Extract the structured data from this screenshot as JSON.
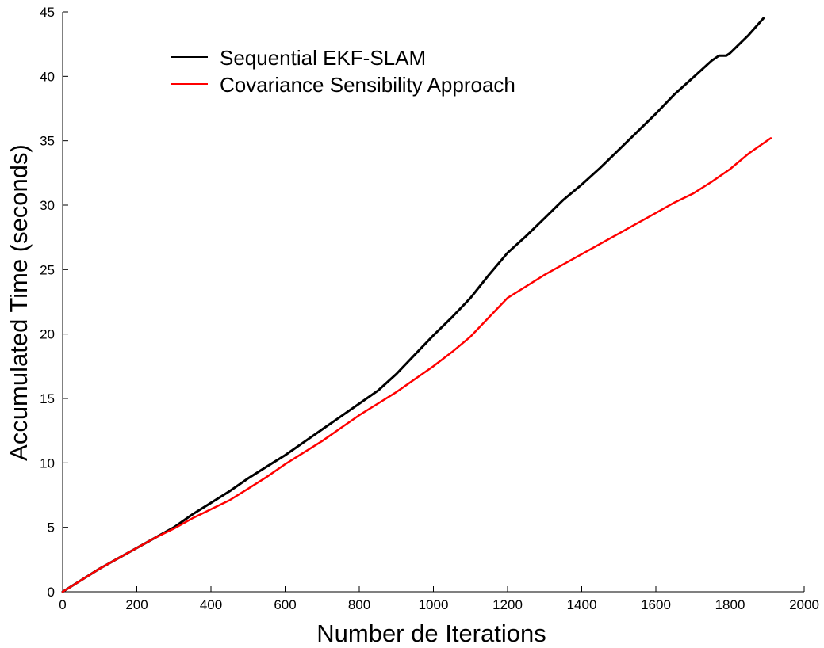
{
  "chart_data": {
    "type": "line",
    "title": "",
    "xlabel": "Number de Iterations",
    "ylabel": "Accumulated Time (seconds)",
    "xlim": [
      0,
      2000
    ],
    "ylim": [
      0,
      45
    ],
    "x_ticks": [
      "0",
      "200",
      "400",
      "600",
      "800",
      "1000",
      "1200",
      "1400",
      "1600",
      "1800",
      "2000"
    ],
    "y_ticks": [
      "0",
      "5",
      "10",
      "15",
      "20",
      "25",
      "30",
      "35",
      "40",
      "45"
    ],
    "grid": false,
    "legend_position": "top-left",
    "series": [
      {
        "name": "Sequential EKF-SLAM",
        "color": "#000000",
        "points": [
          [
            0,
            0
          ],
          [
            50,
            0.9
          ],
          [
            100,
            1.8
          ],
          [
            150,
            2.6
          ],
          [
            200,
            3.4
          ],
          [
            250,
            4.2
          ],
          [
            300,
            5.0
          ],
          [
            350,
            6.0
          ],
          [
            400,
            6.9
          ],
          [
            450,
            7.8
          ],
          [
            500,
            8.8
          ],
          [
            550,
            9.7
          ],
          [
            600,
            10.6
          ],
          [
            650,
            11.6
          ],
          [
            700,
            12.6
          ],
          [
            750,
            13.6
          ],
          [
            800,
            14.6
          ],
          [
            850,
            15.6
          ],
          [
            900,
            16.9
          ],
          [
            950,
            18.4
          ],
          [
            1000,
            19.9
          ],
          [
            1050,
            21.3
          ],
          [
            1100,
            22.8
          ],
          [
            1150,
            24.6
          ],
          [
            1200,
            26.3
          ],
          [
            1250,
            27.6
          ],
          [
            1300,
            29.0
          ],
          [
            1350,
            30.4
          ],
          [
            1400,
            31.6
          ],
          [
            1450,
            32.9
          ],
          [
            1500,
            34.3
          ],
          [
            1550,
            35.7
          ],
          [
            1600,
            37.1
          ],
          [
            1650,
            38.6
          ],
          [
            1700,
            39.9
          ],
          [
            1750,
            41.2
          ],
          [
            1770,
            41.6
          ],
          [
            1790,
            41.6
          ],
          [
            1800,
            41.8
          ],
          [
            1850,
            43.2
          ],
          [
            1890,
            44.5
          ]
        ]
      },
      {
        "name": "Covariance Sensibility Approach",
        "color": "#ff0000",
        "points": [
          [
            0,
            0
          ],
          [
            50,
            0.9
          ],
          [
            100,
            1.8
          ],
          [
            150,
            2.6
          ],
          [
            200,
            3.4
          ],
          [
            250,
            4.2
          ],
          [
            300,
            4.9
          ],
          [
            350,
            5.7
          ],
          [
            400,
            6.4
          ],
          [
            450,
            7.1
          ],
          [
            500,
            8.0
          ],
          [
            550,
            8.9
          ],
          [
            600,
            9.9
          ],
          [
            650,
            10.8
          ],
          [
            700,
            11.7
          ],
          [
            750,
            12.7
          ],
          [
            800,
            13.7
          ],
          [
            850,
            14.6
          ],
          [
            900,
            15.5
          ],
          [
            950,
            16.5
          ],
          [
            1000,
            17.5
          ],
          [
            1050,
            18.6
          ],
          [
            1100,
            19.8
          ],
          [
            1150,
            21.3
          ],
          [
            1200,
            22.8
          ],
          [
            1250,
            23.7
          ],
          [
            1300,
            24.6
          ],
          [
            1350,
            25.4
          ],
          [
            1400,
            26.2
          ],
          [
            1450,
            27.0
          ],
          [
            1500,
            27.8
          ],
          [
            1550,
            28.6
          ],
          [
            1600,
            29.4
          ],
          [
            1650,
            30.2
          ],
          [
            1700,
            30.9
          ],
          [
            1750,
            31.8
          ],
          [
            1800,
            32.8
          ],
          [
            1850,
            34.0
          ],
          [
            1910,
            35.2
          ]
        ]
      }
    ]
  }
}
